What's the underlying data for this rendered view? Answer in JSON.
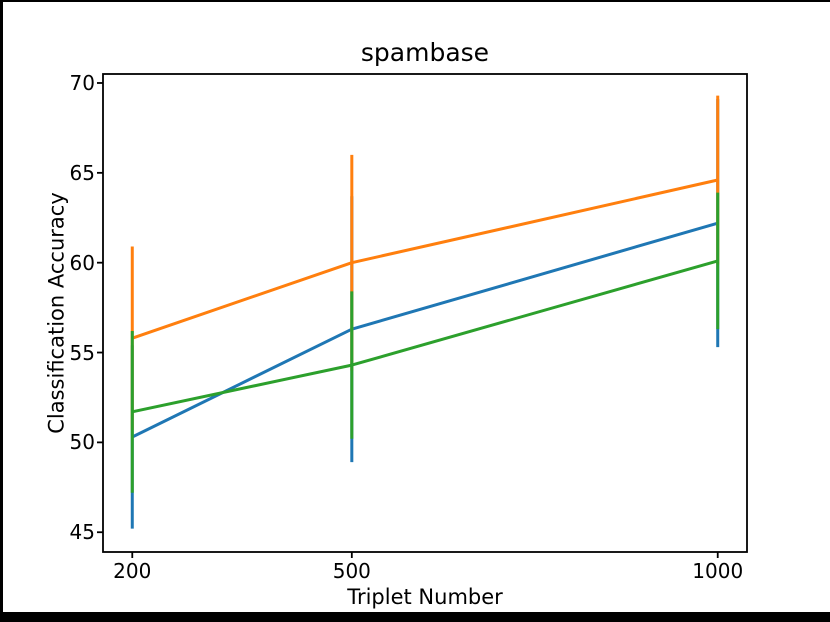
{
  "figure": {
    "background": "#ffffff",
    "frame_color": "#000000"
  },
  "chart_data": {
    "type": "line",
    "title": "spambase",
    "xlabel": "Triplet Number",
    "ylabel": "Classification Accuracy",
    "x": [
      200,
      500,
      1000
    ],
    "xtick_labels": [
      "200",
      "500",
      "1000"
    ],
    "yticks": [
      45,
      50,
      55,
      60,
      65,
      70
    ],
    "ytick_labels": [
      "45",
      "50",
      "55",
      "60",
      "65",
      "70"
    ],
    "xlim": [
      160,
      1040
    ],
    "ylim": [
      43.9,
      70.5
    ],
    "grid": false,
    "legend": "none",
    "error_bars": true,
    "axis_color": "#000000",
    "series": [
      {
        "name": "series-blue",
        "color": "#1f77b4",
        "values": [
          50.3,
          56.3,
          62.2
        ],
        "yerr": [
          5.1,
          7.4,
          6.9
        ]
      },
      {
        "name": "series-orange",
        "color": "#ff7f0e",
        "values": [
          55.8,
          60.0,
          64.6
        ],
        "yerr": [
          5.1,
          6.0,
          4.7
        ]
      },
      {
        "name": "series-green",
        "color": "#2ca02c",
        "values": [
          51.7,
          54.3,
          60.1
        ],
        "yerr": [
          4.5,
          4.1,
          3.8
        ]
      }
    ]
  }
}
